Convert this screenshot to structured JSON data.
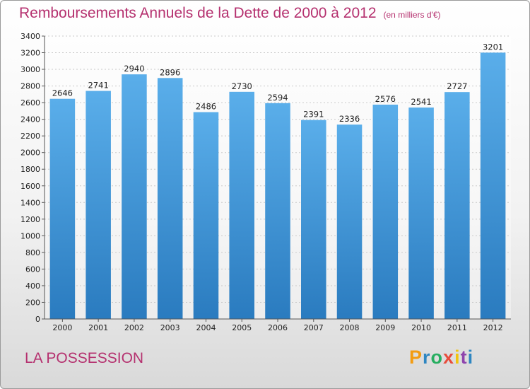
{
  "title": "Remboursements Annuels de la Dette de 2000 à 2012",
  "subtitle": "(en milliers d'€)",
  "town": "LA POSSESSION",
  "logo": {
    "letters": [
      "P",
      "r",
      "o",
      "x",
      "i",
      "t",
      "i"
    ],
    "colors": [
      "#f39c12",
      "#2e86c1",
      "#27ae60",
      "#e74c3c",
      "#f1c40f",
      "#8e44ad",
      "#2e86c1"
    ]
  },
  "chart_data": {
    "type": "bar",
    "title": "Remboursements Annuels de la Dette de 2000 à 2012",
    "categories": [
      "2000",
      "2001",
      "2002",
      "2003",
      "2004",
      "2005",
      "2006",
      "2007",
      "2008",
      "2009",
      "2010",
      "2011",
      "2012"
    ],
    "values": [
      2646,
      2741,
      2940,
      2896,
      2486,
      2730,
      2594,
      2391,
      2336,
      2576,
      2541,
      2727,
      3201
    ],
    "ylim": [
      0,
      3400
    ],
    "ytick_step": 200,
    "grid": true,
    "bar_color_top": "#5aaeea",
    "bar_color_bottom": "#2a7bbf"
  }
}
